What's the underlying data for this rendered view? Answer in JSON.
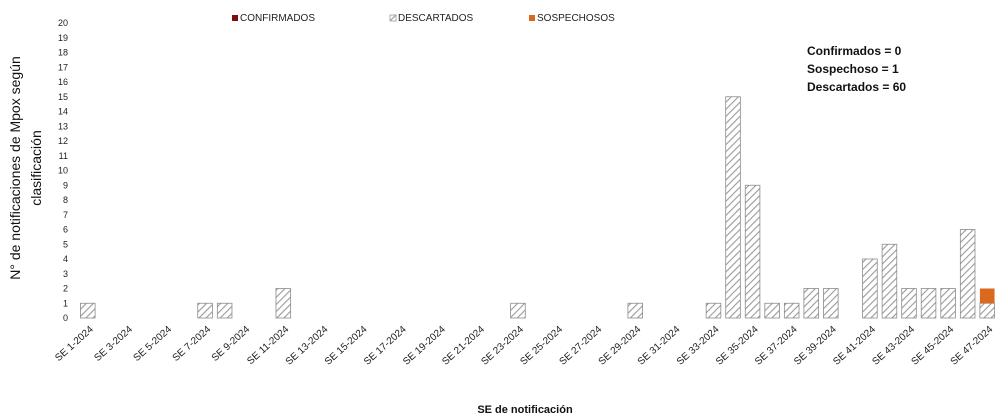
{
  "chart_data": {
    "type": "bar",
    "stacked": true,
    "xlabel": "SE de notificación",
    "ylabel_line1": "N° de notificaciones de Mpox según",
    "ylabel_line2": "clasificación",
    "ylim": [
      0,
      20
    ],
    "yticks": [
      0,
      1,
      2,
      3,
      4,
      5,
      6,
      7,
      8,
      9,
      10,
      11,
      12,
      13,
      14,
      15,
      16,
      17,
      18,
      19,
      20
    ],
    "grid": false,
    "legend_position": "top-center",
    "categories": [
      "SE 1-2024",
      "SE 2-2024",
      "SE 3-2024",
      "SE 4-2024",
      "SE 5-2024",
      "SE 6-2024",
      "SE 7-2024",
      "SE 8-2024",
      "SE 9-2024",
      "SE 10-2024",
      "SE 11-2024",
      "SE 12-2024",
      "SE 13-2024",
      "SE 14-2024",
      "SE 15-2024",
      "SE 16-2024",
      "SE 17-2024",
      "SE 18-2024",
      "SE 19-2024",
      "SE 20-2024",
      "SE 21-2024",
      "SE 22-2024",
      "SE 23-2024",
      "SE 24-2024",
      "SE 25-2024",
      "SE 26-2024",
      "SE 27-2024",
      "SE 28-2024",
      "SE 29-2024",
      "SE 30-2024",
      "SE 31-2024",
      "SE 32-2024",
      "SE 33-2024",
      "SE 34-2024",
      "SE 35-2024",
      "SE 36-2024",
      "SE 37-2024",
      "SE 38-2024",
      "SE 39-2024",
      "SE 40-2024",
      "SE 41-2024",
      "SE 42-2024",
      "SE 43-2024",
      "SE 44-2024",
      "SE 45-2024",
      "SE 46-2024",
      "SE 47-2024"
    ],
    "shown_tick_labels": [
      "SE 1-2024",
      "SE 3-2024",
      "SE 5-2024",
      "SE 7-2024",
      "SE 9-2024",
      "SE 11-2024",
      "SE 13-2024",
      "SE 15-2024",
      "SE 17-2024",
      "SE 19-2024",
      "SE 21-2024",
      "SE 23-2024",
      "SE 25-2024",
      "SE 27-2024",
      "SE 29-2024",
      "SE 31-2024",
      "SE 33-2024",
      "SE 35-2024",
      "SE 37-2024",
      "SE 39-2024",
      "SE 41-2024",
      "SE 43-2024",
      "SE 45-2024",
      "SE 47-2024"
    ],
    "series": [
      {
        "name": "CONFIRMADOS",
        "color": "#7b1113",
        "pattern": "solid",
        "values": [
          0,
          0,
          0,
          0,
          0,
          0,
          0,
          0,
          0,
          0,
          0,
          0,
          0,
          0,
          0,
          0,
          0,
          0,
          0,
          0,
          0,
          0,
          0,
          0,
          0,
          0,
          0,
          0,
          0,
          0,
          0,
          0,
          0,
          0,
          0,
          0,
          0,
          0,
          0,
          0,
          0,
          0,
          0,
          0,
          0,
          0,
          0
        ]
      },
      {
        "name": "DESCARTADOS",
        "color": "#9a9a9a",
        "pattern": "diagonal-hatch",
        "values": [
          1,
          0,
          0,
          0,
          0,
          0,
          1,
          1,
          0,
          0,
          2,
          0,
          0,
          0,
          0,
          0,
          0,
          0,
          0,
          0,
          0,
          0,
          1,
          0,
          0,
          0,
          0,
          0,
          1,
          0,
          0,
          0,
          1,
          15,
          9,
          1,
          1,
          2,
          2,
          0,
          4,
          5,
          2,
          2,
          2,
          6,
          1
        ]
      },
      {
        "name": "SOSPECHOSOS",
        "color": "#d9691c",
        "pattern": "solid",
        "values": [
          0,
          0,
          0,
          0,
          0,
          0,
          0,
          0,
          0,
          0,
          0,
          0,
          0,
          0,
          0,
          0,
          0,
          0,
          0,
          0,
          0,
          0,
          0,
          0,
          0,
          0,
          0,
          0,
          0,
          0,
          0,
          0,
          0,
          0,
          0,
          0,
          0,
          0,
          0,
          0,
          0,
          0,
          0,
          0,
          0,
          0,
          1
        ]
      }
    ],
    "annotations": [
      "Confirmados = 0",
      "Sospechoso = 1",
      "Descartados = 60"
    ]
  }
}
